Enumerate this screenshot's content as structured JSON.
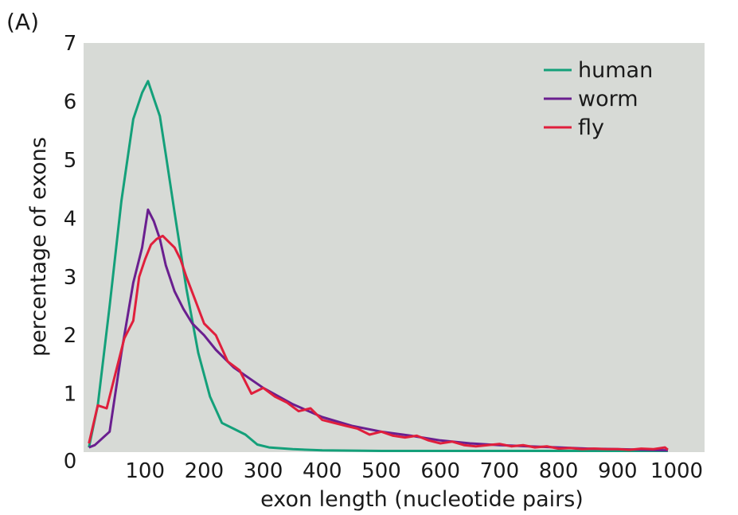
{
  "chart_data": {
    "type": "line",
    "panel_label": "(A)",
    "xlabel": "exon length (nucleotide pairs)",
    "ylabel": "percentage of exons",
    "xlim": [
      0,
      1000
    ],
    "ylim": [
      0,
      7
    ],
    "x_ticks": [
      "100",
      "200",
      "300",
      "400",
      "500",
      "600",
      "700",
      "800",
      "900",
      "1000"
    ],
    "x_tick_values": [
      100,
      200,
      300,
      400,
      500,
      600,
      700,
      800,
      900,
      1000
    ],
    "y_ticks": [
      "1",
      "2",
      "3",
      "4",
      "5",
      "6",
      "7"
    ],
    "y_tick_values": [
      1,
      2,
      3,
      4,
      5,
      6,
      7
    ],
    "origin_label": "0",
    "background": "#d7dad6",
    "legend_position": "top-right",
    "series": [
      {
        "name": "human",
        "color": "#14a07a",
        "x": [
          5,
          20,
          40,
          60,
          80,
          95,
          105,
          115,
          125,
          135,
          150,
          170,
          190,
          210,
          230,
          250,
          270,
          290,
          310,
          350,
          400,
          500,
          600,
          700,
          800,
          900,
          985
        ],
        "y": [
          0.08,
          0.8,
          2.5,
          4.3,
          5.7,
          6.15,
          6.35,
          6.05,
          5.75,
          5.1,
          4.1,
          2.8,
          1.7,
          0.95,
          0.5,
          0.4,
          0.3,
          0.13,
          0.08,
          0.05,
          0.03,
          0.02,
          0.02,
          0.02,
          0.02,
          0.02,
          0.02
        ]
      },
      {
        "name": "worm",
        "color": "#6a1f8f",
        "x": [
          5,
          15,
          40,
          60,
          80,
          95,
          105,
          115,
          125,
          135,
          150,
          165,
          180,
          200,
          220,
          250,
          300,
          350,
          400,
          450,
          500,
          550,
          600,
          650,
          700,
          750,
          800,
          850,
          900,
          950,
          985
        ],
        "y": [
          0.08,
          0.12,
          0.35,
          1.7,
          2.9,
          3.5,
          4.15,
          3.95,
          3.65,
          3.2,
          2.75,
          2.45,
          2.2,
          2.0,
          1.75,
          1.45,
          1.1,
          0.82,
          0.6,
          0.45,
          0.35,
          0.28,
          0.2,
          0.15,
          0.12,
          0.1,
          0.08,
          0.06,
          0.05,
          0.04,
          0.03
        ]
      },
      {
        "name": "fly",
        "color": "#e01f3c",
        "x": [
          5,
          20,
          35,
          50,
          65,
          80,
          90,
          100,
          110,
          120,
          130,
          140,
          150,
          160,
          170,
          185,
          200,
          220,
          240,
          260,
          280,
          300,
          320,
          340,
          360,
          380,
          400,
          420,
          440,
          460,
          480,
          500,
          520,
          540,
          560,
          580,
          600,
          620,
          640,
          660,
          680,
          700,
          720,
          740,
          760,
          780,
          800,
          820,
          840,
          860,
          880,
          900,
          920,
          940,
          960,
          980,
          985
        ],
        "y": [
          0.15,
          0.8,
          0.75,
          1.35,
          1.95,
          2.25,
          3.0,
          3.3,
          3.55,
          3.65,
          3.7,
          3.6,
          3.5,
          3.3,
          3.0,
          2.6,
          2.2,
          2.0,
          1.55,
          1.4,
          1.0,
          1.1,
          0.95,
          0.85,
          0.7,
          0.75,
          0.55,
          0.5,
          0.45,
          0.4,
          0.3,
          0.35,
          0.28,
          0.25,
          0.28,
          0.2,
          0.15,
          0.18,
          0.12,
          0.1,
          0.12,
          0.14,
          0.1,
          0.12,
          0.08,
          0.1,
          0.06,
          0.07,
          0.05,
          0.06,
          0.05,
          0.05,
          0.04,
          0.06,
          0.05,
          0.08,
          0.04
        ]
      }
    ]
  }
}
